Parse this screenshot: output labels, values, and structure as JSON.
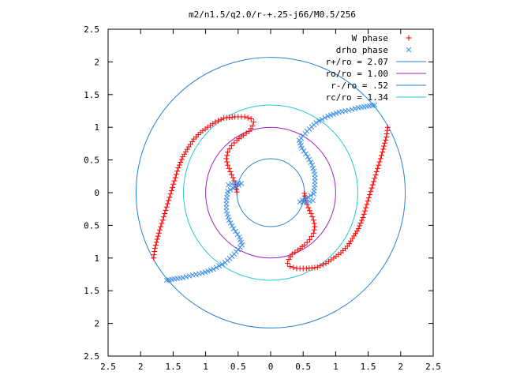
{
  "chart_data": {
    "type": "scatter",
    "title": "m2/n1.5/q2.0/r-+.25-j66/M0.5/256",
    "xlim": [
      -2.5,
      2.5
    ],
    "ylim": [
      -2.5,
      2.5
    ],
    "xticks": [
      -2.5,
      -2,
      -1.5,
      -1,
      -0.5,
      0,
      0.5,
      1,
      1.5,
      2,
      2.5
    ],
    "yticks": [
      -2.5,
      -2,
      -1.5,
      -1,
      -0.5,
      0,
      0.5,
      1,
      1.5,
      2,
      2.5
    ],
    "xtick_labels": [
      "2.5",
      "2",
      "1.5",
      "1",
      "0.5",
      "0",
      "0.5",
      "1",
      "1.5",
      "2",
      "2.5"
    ],
    "ytick_labels": [
      "2.5",
      "2",
      "1.5",
      "1",
      "0.5",
      "0",
      "0.5",
      "1",
      "1.5",
      "2",
      "2.5"
    ],
    "grid": false,
    "legend_position": "top-right",
    "legend": [
      {
        "label": "W phase",
        "marker": "+",
        "color": "#ff0000"
      },
      {
        "label": "drho phase",
        "marker": "x",
        "color": "#3a8ee8"
      },
      {
        "label": "r+/ro = 2.07",
        "marker": "line",
        "color": "#2a7fd4"
      },
      {
        "label": "ro/ro = 1.00",
        "marker": "line",
        "color": "#a020c0"
      },
      {
        "label": "r-/ro = .52",
        "marker": "line",
        "color": "#2a7fd4"
      },
      {
        "label": "rc/ro = 1.34",
        "marker": "line",
        "color": "#20c8d8"
      }
    ],
    "circles": [
      {
        "name": "r+/ro",
        "radius": 2.07,
        "color": "#2a7fd4"
      },
      {
        "name": "ro/ro",
        "radius": 1.0,
        "color": "#a020c0"
      },
      {
        "name": "r-/ro",
        "radius": 0.52,
        "color": "#2a7fd4"
      },
      {
        "name": "rc/ro",
        "radius": 1.34,
        "color": "#20c8d8"
      }
    ],
    "series": [
      {
        "name": "W phase",
        "color": "#ff0000",
        "marker": "+",
        "arms": [
          [
            [
              -0.52,
              0.01
            ],
            [
              -0.54,
              0.13
            ],
            [
              -0.58,
              0.23
            ],
            [
              -0.62,
              0.32
            ],
            [
              -0.66,
              0.42
            ],
            [
              -0.68,
              0.52
            ],
            [
              -0.66,
              0.62
            ],
            [
              -0.6,
              0.72
            ],
            [
              -0.52,
              0.8
            ],
            [
              -0.42,
              0.88
            ],
            [
              -0.33,
              0.94
            ],
            [
              -0.28,
              1.02
            ],
            [
              -0.26,
              1.08
            ],
            [
              -0.3,
              1.13
            ],
            [
              -0.4,
              1.16
            ],
            [
              -0.55,
              1.16
            ],
            [
              -0.72,
              1.14
            ],
            [
              -0.85,
              1.08
            ],
            [
              -0.97,
              1.0
            ],
            [
              -1.08,
              0.92
            ],
            [
              -1.18,
              0.82
            ],
            [
              -1.26,
              0.7
            ],
            [
              -1.35,
              0.55
            ],
            [
              -1.42,
              0.38
            ],
            [
              -1.48,
              0.18
            ],
            [
              -1.54,
              -0.02
            ],
            [
              -1.6,
              -0.22
            ],
            [
              -1.66,
              -0.42
            ],
            [
              -1.72,
              -0.62
            ],
            [
              -1.78,
              -0.85
            ],
            [
              -1.8,
              -1.0
            ]
          ],
          [
            [
              0.52,
              -0.01
            ],
            [
              0.54,
              -0.13
            ],
            [
              0.58,
              -0.23
            ],
            [
              0.62,
              -0.32
            ],
            [
              0.66,
              -0.42
            ],
            [
              0.68,
              -0.52
            ],
            [
              0.66,
              -0.62
            ],
            [
              0.6,
              -0.72
            ],
            [
              0.52,
              -0.8
            ],
            [
              0.42,
              -0.88
            ],
            [
              0.33,
              -0.94
            ],
            [
              0.28,
              -1.02
            ],
            [
              0.26,
              -1.08
            ],
            [
              0.3,
              -1.13
            ],
            [
              0.4,
              -1.16
            ],
            [
              0.55,
              -1.16
            ],
            [
              0.72,
              -1.14
            ],
            [
              0.85,
              -1.08
            ],
            [
              0.97,
              -1.0
            ],
            [
              1.08,
              -0.92
            ],
            [
              1.18,
              -0.82
            ],
            [
              1.26,
              -0.7
            ],
            [
              1.35,
              -0.55
            ],
            [
              1.42,
              -0.38
            ],
            [
              1.48,
              -0.18
            ],
            [
              1.54,
              0.02
            ],
            [
              1.6,
              0.22
            ],
            [
              1.66,
              0.42
            ],
            [
              1.72,
              0.62
            ],
            [
              1.78,
              0.85
            ],
            [
              1.8,
              1.0
            ]
          ]
        ]
      },
      {
        "name": "drho phase",
        "color": "#3a8ee8",
        "marker": "x",
        "arms": [
          [
            [
              -0.65,
              0.12
            ],
            [
              -0.55,
              0.15
            ],
            [
              -0.45,
              0.14
            ],
            [
              -0.66,
              0.02
            ],
            [
              -0.68,
              -0.12
            ],
            [
              -0.68,
              -0.28
            ],
            [
              -0.64,
              -0.42
            ],
            [
              -0.57,
              -0.55
            ],
            [
              -0.48,
              -0.68
            ],
            [
              -0.44,
              -0.8
            ],
            [
              -0.56,
              -0.94
            ],
            [
              -0.7,
              -1.07
            ],
            [
              -0.88,
              -1.17
            ],
            [
              -1.05,
              -1.23
            ],
            [
              -1.2,
              -1.26
            ],
            [
              -1.35,
              -1.3
            ],
            [
              -1.48,
              -1.32
            ],
            [
              -1.6,
              -1.34
            ]
          ],
          [
            [
              0.65,
              -0.12
            ],
            [
              0.55,
              -0.15
            ],
            [
              0.45,
              -0.14
            ],
            [
              0.66,
              -0.02
            ],
            [
              0.68,
              0.12
            ],
            [
              0.68,
              0.28
            ],
            [
              0.64,
              0.42
            ],
            [
              0.57,
              0.55
            ],
            [
              0.48,
              0.68
            ],
            [
              0.44,
              0.8
            ],
            [
              0.56,
              0.94
            ],
            [
              0.7,
              1.07
            ],
            [
              0.88,
              1.17
            ],
            [
              1.05,
              1.23
            ],
            [
              1.2,
              1.26
            ],
            [
              1.35,
              1.3
            ],
            [
              1.48,
              1.32
            ],
            [
              1.6,
              1.34
            ]
          ]
        ]
      }
    ]
  }
}
